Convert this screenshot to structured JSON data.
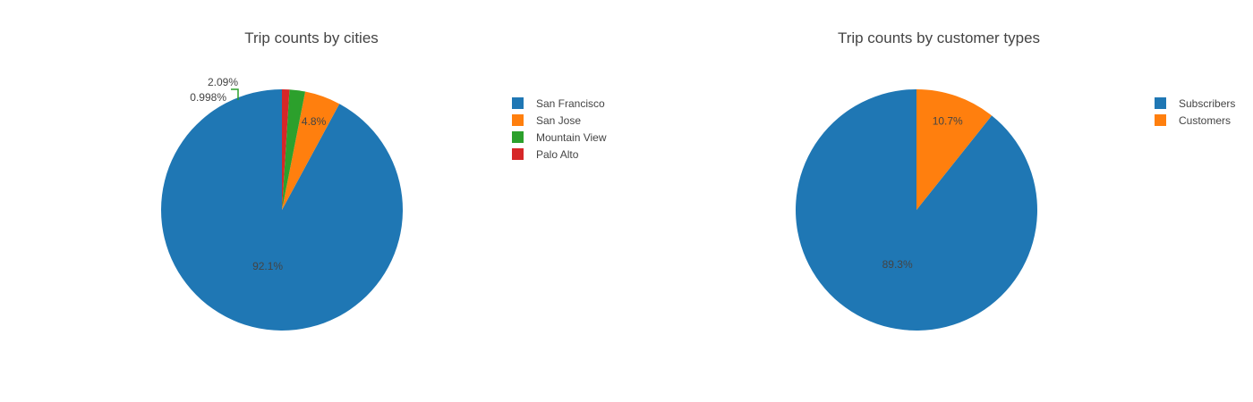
{
  "chart_data": [
    {
      "type": "pie",
      "title": "Trip counts by cities",
      "slices": [
        {
          "label": "San Francisco",
          "value": 92.1,
          "text": "92.1%",
          "color": "#1f77b4"
        },
        {
          "label": "San Jose",
          "value": 4.8,
          "text": "4.8%",
          "color": "#ff7f0e"
        },
        {
          "label": "Mountain View",
          "value": 2.09,
          "text": "2.09%",
          "color": "#2ca02c"
        },
        {
          "label": "Palo Alto",
          "value": 0.998,
          "text": "0.998%",
          "color": "#d62728"
        }
      ],
      "legend_position": "top-right"
    },
    {
      "type": "pie",
      "title": "Trip counts by customer types",
      "slices": [
        {
          "label": "Subscribers",
          "value": 89.3,
          "text": "89.3%",
          "color": "#1f77b4"
        },
        {
          "label": "Customers",
          "value": 10.7,
          "text": "10.7%",
          "color": "#ff7f0e"
        }
      ],
      "legend_position": "top-right"
    }
  ]
}
